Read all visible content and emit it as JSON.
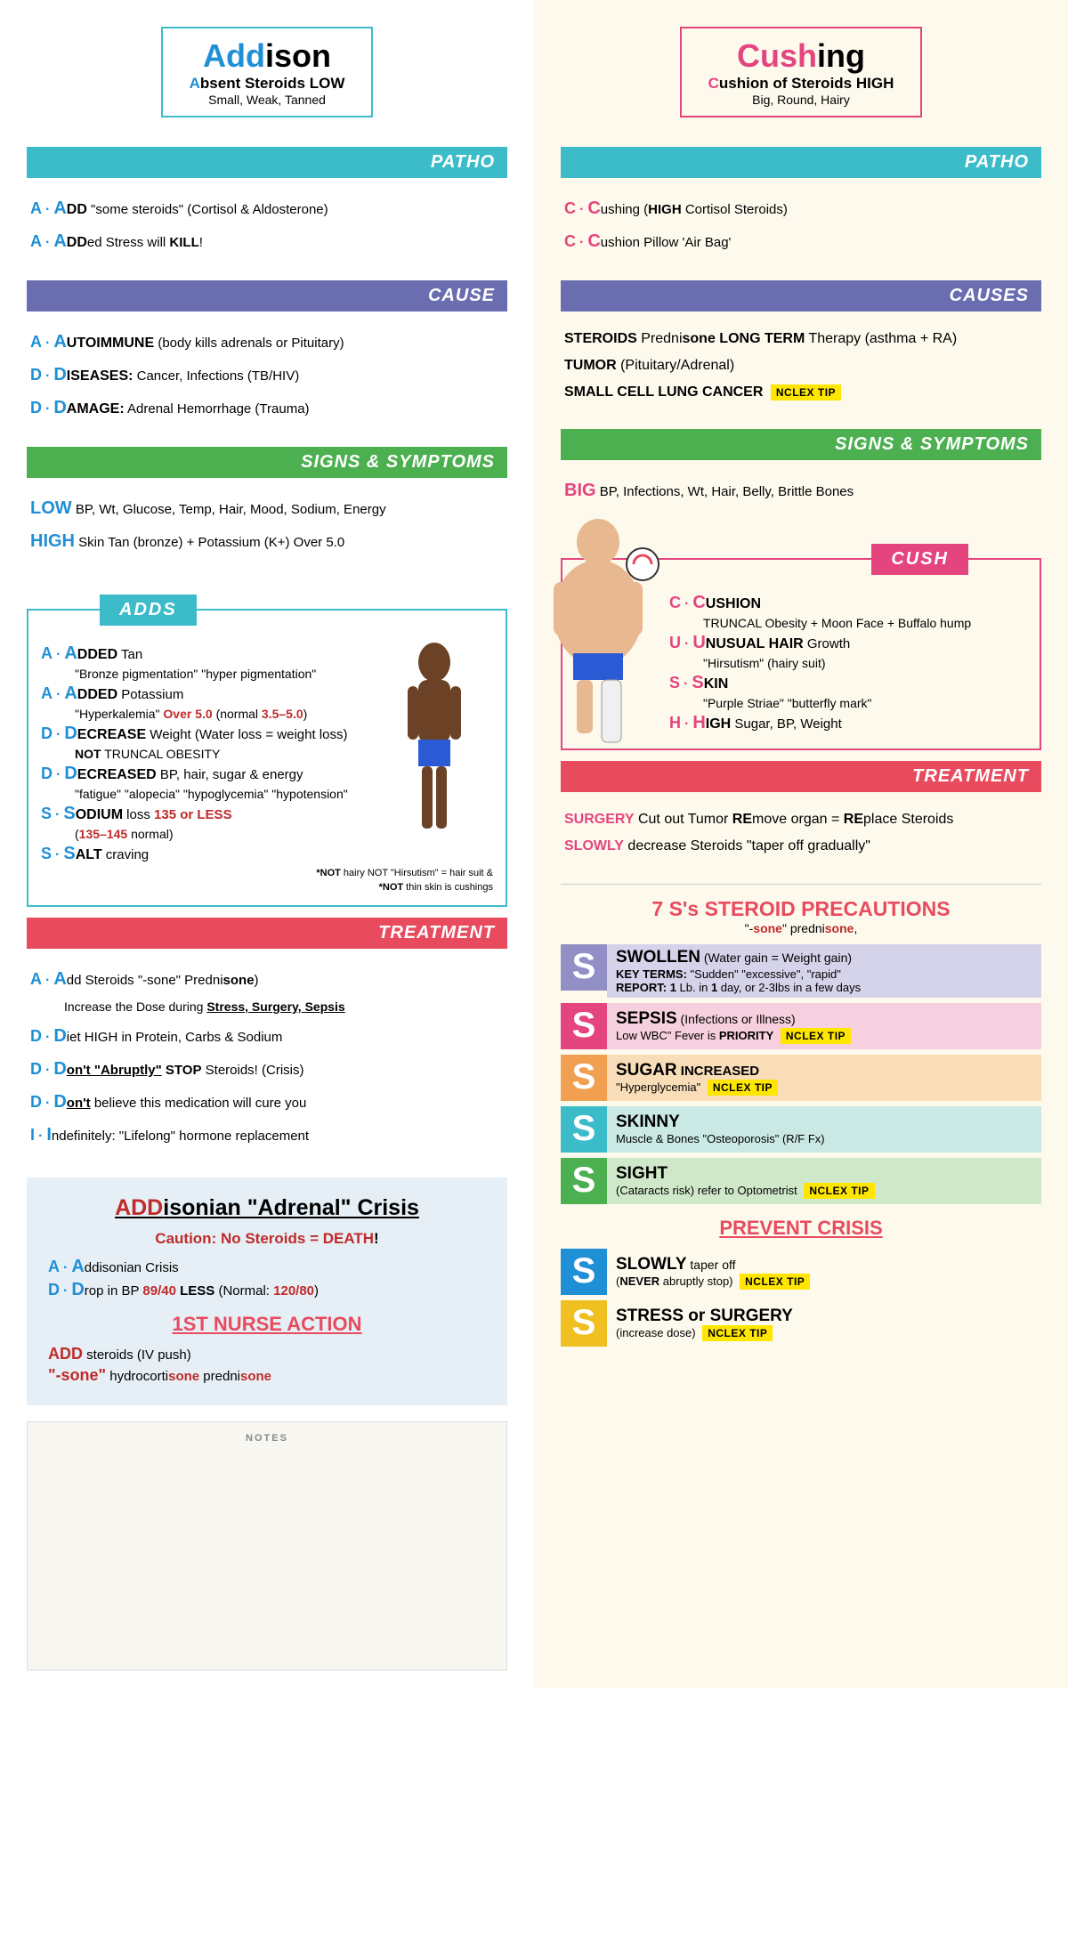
{
  "colors": {
    "teal": "#3cbcc9",
    "purple": "#6a6db0",
    "green": "#4caf50",
    "red": "#e84b5e",
    "pink": "#e5457f",
    "blue": "#1f8fd6",
    "darkred": "#c02a2a",
    "orange": "#f0a050",
    "lightblue": "#b8d9e0",
    "lightpink": "#f5c0d0",
    "lightorange": "#f5c890",
    "lightteal": "#b0ddd5",
    "lightgreen": "#a8d8a0",
    "yellow": "#f0c020",
    "black": "#222222"
  },
  "addison": {
    "title_prefix": "Add",
    "title_suffix": "ison",
    "sub_prefix": "A",
    "sub_rest": "bsent Steroids ",
    "sub_bold": "LOW",
    "desc": "Small, Weak, Tanned",
    "patho_bar": "PATHO",
    "patho": [
      {
        "l": "A",
        "f": "A",
        "r": "DD",
        "t": " \"some steroids\" (Cortisol & Aldosterone)"
      },
      {
        "l": "A",
        "f": "A",
        "r": "DD",
        "t": "ed Stress will ",
        "bold": "KILL",
        "after": "!"
      }
    ],
    "cause_bar": "CAUSE",
    "cause": [
      {
        "l": "A",
        "f": "A",
        "r": "UTOIMMUNE",
        "t": " (body kills adrenals or Pituitary)"
      },
      {
        "l": "D",
        "f": "D",
        "r": "ISEASES:",
        "t": " Cancer, Infections (TB/HIV)"
      },
      {
        "l": "D",
        "f": "D",
        "r": "AMAGE:",
        "t": " Adrenal Hemorrhage (Trauma)"
      }
    ],
    "signs_bar": "SIGNS & SYMPTOMS",
    "signs_low_label": "LOW",
    "signs_low": " BP, Wt, Glucose, Temp, Hair, Mood, Sodium, Energy",
    "signs_high_label": "HIGH",
    "signs_high": " Skin Tan (bronze) + Potassium (K+) Over 5.0",
    "adds_tab": "ADDS",
    "adds": [
      {
        "l": "A",
        "f": "A",
        "r": "DDED",
        "t": " Tan",
        "d": "\"Bronze pigmentation\" \"hyper pigmentation\""
      },
      {
        "l": "A",
        "f": "A",
        "r": "DDED",
        "t": " Potassium",
        "d": "\"Hyperkalemia\" ",
        "dred": "Over 5.0",
        "dnorm": " (normal ",
        "dred2": "3.5–5.0",
        "dafter": ")"
      },
      {
        "l": "D",
        "f": "D",
        "r": "ECREASE",
        "t": " Weight (Water loss = weight loss)",
        "d": "NOT ",
        "dbold": "TRUNCAL OBESITY"
      },
      {
        "l": "D",
        "f": "D",
        "r": "ECREASED",
        "t": " BP, hair, sugar & energy",
        "d": "\"fatigue\" \"alopecia\" \"hypoglycemia\" \"hypotension\""
      },
      {
        "l": "S",
        "f": "S",
        "r": "ODIUM",
        "t": " loss ",
        "tred": "135 or LESS",
        "d": "(",
        "dred": "135–145",
        "dafter": " normal)"
      },
      {
        "l": "S",
        "f": "S",
        "r": "ALT",
        "t": " craving"
      }
    ],
    "adds_note1": "*NOT hairy NOT \"Hirsutism\" = hair suit &",
    "adds_note2": "*NOT thin skin is cushings",
    "treat_bar": "TREATMENT",
    "treat": [
      {
        "l": "A",
        "f": "A",
        "r": "dd",
        "t": " Steroids \"-sone\" Predni",
        "tbold": "sone",
        ")": ")",
        "d": "Increase the Dose during ",
        "du": "Stress, Surgery, Sepsis"
      },
      {
        "l": "D",
        "f": "D",
        "r": "iet",
        "t": " HIGH in Protein, Carbs & Sodium"
      },
      {
        "l": "D",
        "f": "D",
        "r": "on't \"Abruptly\"",
        "rbold": " STOP",
        "t": " Steroids! (Crisis)",
        "u": true
      },
      {
        "l": "D",
        "f": "D",
        "r": "on't",
        "t": "  believe this medication will cure you",
        "u": true
      },
      {
        "l": "I",
        "f": "I",
        "r": "ndefinitely:",
        "t": " \"Lifelong\" hormone replacement"
      }
    ],
    "crisis_title_pre": "ADD",
    "crisis_title_rest": "isonian \"Adrenal\" Crisis",
    "crisis_caution_pre": "Caution: No Steroids = ",
    "crisis_caution_red": "DEATH",
    "crisis_caution_post": "!",
    "crisis_lines": [
      {
        "l": "A",
        "f": "A",
        "r": "ddisonian Crisis"
      },
      {
        "l": "D",
        "f": "D",
        "r": "rop in BP ",
        "red1": "89/40",
        "mid": " LESS (Normal: ",
        "red2": "120/80",
        "after": ")"
      }
    ],
    "action_title": "1ST NURSE ACTION",
    "action_lines": [
      {
        "bold": "ADD",
        "rest": " steroids (IV push)"
      },
      {
        "bold": "\"-sone\"",
        "rest": " hydrocorti",
        "red": "sone",
        "rest2": " predni",
        "red2": "sone"
      }
    ],
    "notes_label": "NOTES"
  },
  "cushing": {
    "title_prefix": "Cush",
    "title_suffix": "ing",
    "sub_prefix": "C",
    "sub_rest": "ushion of Steroids ",
    "sub_bold": "HIGH",
    "desc": "Big, Round, Hairy",
    "patho_bar": "PATHO",
    "patho": [
      {
        "l": "C",
        "f": "C",
        "r": "ushing",
        "t": " (",
        "tbold": "HIGH",
        "t2": " Cortisol Steroids)"
      },
      {
        "l": "C",
        "f": "C",
        "r": "ushion",
        "t": " Pillow 'Air Bag'"
      }
    ],
    "cause_bar": "CAUSES",
    "cause": [
      {
        "bold": "STEROIDS",
        "t": " Predni",
        "tb": "sone",
        " t2": " LONG TERM",
        "t3": " Therapy (asthma + RA)"
      },
      {
        "bold": "TUMOR",
        "t": " (Pituitary/Adrenal)"
      },
      {
        "bold": "SMALL CELL LUNG CANCER",
        "nclex": true
      }
    ],
    "signs_bar": "SIGNS & SYMPTOMS",
    "signs_big_label": "BIG",
    "signs_big": " BP, Infections, Wt, Hair, Belly, Brittle Bones",
    "cush_tab": "CUSH",
    "cush": [
      {
        "l": "C",
        "f": "C",
        "r": "USHION",
        "d": "TRUNCAL Obesity + Moon Face + Buffalo hump"
      },
      {
        "l": "U",
        "f": "U",
        "r": "NUSUAL HAIR",
        "t": " Growth",
        "d": "\"Hirsutism\" (hairy suit)"
      },
      {
        "l": "S",
        "f": "S",
        "r": "KIN",
        "d": "\"Purple Striae\" \"butterfly mark\""
      },
      {
        "l": "H",
        "f": "H",
        "r": "IGH",
        "t": " Sugar, BP, Weight"
      }
    ],
    "treat_bar": "TREATMENT",
    "treat": [
      {
        "pre": "SURGERY",
        "t": " Cut out Tumor ",
        "b1": "RE",
        "t2": "move organ = ",
        "b2": "RE",
        "t3": "place Steroids"
      },
      {
        "pre": "SLOWLY",
        "t": " decrease Steroids \"taper off gradually\""
      }
    ],
    "precautions_title": "7 S's STEROID PRECAUTIONS",
    "precautions_sub_pre": "\"-",
    "precautions_sub_red": "sone",
    "precautions_sub_mid": "\" predni",
    "precautions_sub_red2": "sone",
    "precautions_sub_after": ",",
    "s_rows": [
      {
        "box": "#918fc5",
        "bg": "#d4d3ea",
        "title": "SWOLLEN",
        "small": " (Water gain = Weight gain)",
        "d": "KEY TERMS: \"Sudden\" \"excessive\", \"rapid\"",
        "d2": "REPORT: 1 Lb. in 1 day, or 2-3lbs in a few days"
      },
      {
        "box": "#e5457f",
        "bg": "#f6d0de",
        "title": "SEPSIS",
        "small": " (Infections or Illness)",
        "d": "Low WBC\" Fever is ",
        "dbold": "PRIORITY",
        "nclex": true
      },
      {
        "box": "#f0a050",
        "bg": "#f8ddb8",
        "title": "SUGAR",
        "title2": " INCREASED",
        "d": "\"Hyperglycemia\"",
        "nclex": true
      },
      {
        "box": "#3cbcc9",
        "bg": "#cae8e4",
        "title": "SKINNY",
        "d": "Muscle & Bones \"Osteoporosis\" (R/F Fx)"
      },
      {
        "box": "#4caf50",
        "bg": "#cfe8c9",
        "title": "SIGHT",
        "d": "(Cataracts risk) refer to Optometrist",
        "nclex": true
      }
    ],
    "prevent_title": "PREVENT CRISIS",
    "prevent_rows": [
      {
        "box": "#1f8fd6",
        "title": "SLOWLY",
        "small": " taper off",
        "d": "(",
        "dbold": "NEVER",
        "d2": " abruptly stop)",
        "nclex": true
      },
      {
        "box": "#f0c020",
        "title": "STRESS or SURGERY",
        "d": "(increase dose)",
        "nclex": true
      }
    ],
    "nclex_label": "NCLEX TIP"
  }
}
